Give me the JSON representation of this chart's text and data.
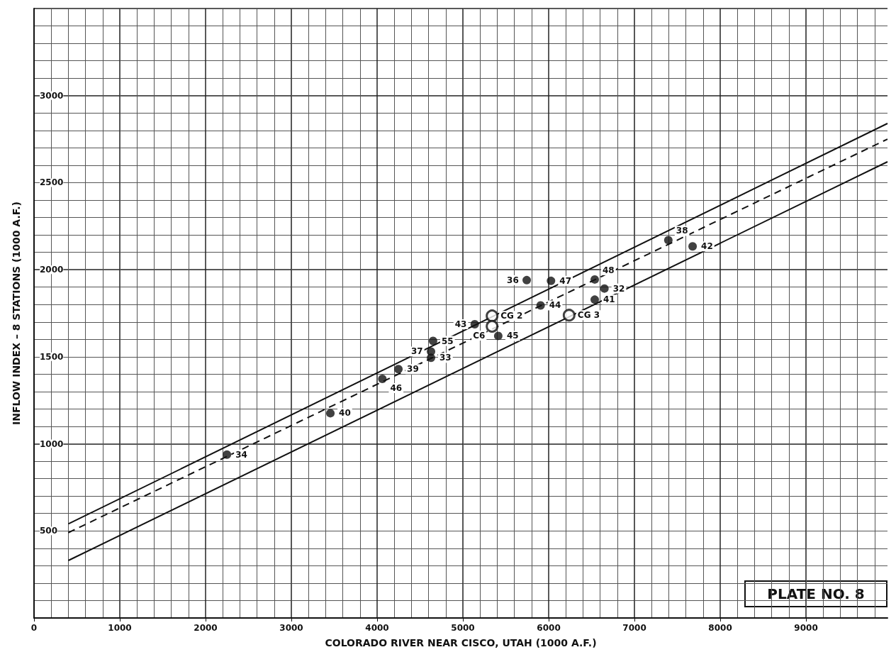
{
  "chart_data": {
    "type": "scatter",
    "xlabel": "COLORADO RIVER NEAR CISCO, UTAH (1000 A.F.)",
    "ylabel": "INFLOW INDEX – 8 STATIONS (1000 A.F.)",
    "xlim": [
      0,
      9950
    ],
    "ylim": [
      0,
      3500
    ],
    "xticks": [
      0,
      1000,
      2000,
      3000,
      4000,
      5000,
      6000,
      7000,
      8000,
      9000
    ],
    "yticks": [
      500,
      1000,
      1500,
      2000,
      2500,
      3000
    ],
    "grid": true,
    "annotations": [
      "PLATE NO. 8",
      {
        "text": "34",
        "x": 2249,
        "y": 938
      },
      {
        "text": "40",
        "x": 3455,
        "y": 1176
      },
      {
        "text": "46",
        "x": 4061,
        "y": 1373
      },
      {
        "text": "39",
        "x": 4248,
        "y": 1429
      },
      {
        "text": "33",
        "x": 4628,
        "y": 1494
      },
      {
        "text": "37",
        "x": 4628,
        "y": 1530
      },
      {
        "text": "55",
        "x": 4652,
        "y": 1591
      },
      {
        "text": "43",
        "x": 5138,
        "y": 1687
      },
      {
        "text": "45",
        "x": 5412,
        "y": 1620
      },
      {
        "text": "36",
        "x": 5744,
        "y": 1940
      },
      {
        "text": "44",
        "x": 5906,
        "y": 1795
      },
      {
        "text": "47",
        "x": 6027,
        "y": 1936
      },
      {
        "text": "48",
        "x": 6537,
        "y": 1944
      },
      {
        "text": "41",
        "x": 6537,
        "y": 1828
      },
      {
        "text": "32",
        "x": 6650,
        "y": 1892
      },
      {
        "text": "38",
        "x": 7395,
        "y": 2170
      },
      {
        "text": "42",
        "x": 7678,
        "y": 2134
      },
      {
        "text": "CG 2",
        "x": 5340,
        "y": 1735
      },
      {
        "text": "C6",
        "x": 5340,
        "y": 1675
      },
      {
        "text": "CG 3",
        "x": 6238,
        "y": 1739
      }
    ],
    "series": [
      {
        "color": "#111111",
        "marker": "circle",
        "x": [
          2249,
          3455,
          4061,
          4248,
          4628,
          4628,
          4652,
          5138,
          5412,
          5744,
          5906,
          6027,
          6537,
          6537,
          6650,
          7395,
          7678
        ],
        "values": [
          938,
          1176,
          1373,
          1429,
          1494,
          1530,
          1591,
          1687,
          1620,
          1940,
          1795,
          1936,
          1944,
          1828,
          1892,
          2170,
          2134
        ]
      },
      {
        "color": "#111111",
        "marker": "circle",
        "x": [
          5340,
          5340,
          6238
        ],
        "values": [
          1735,
          1675,
          1739
        ]
      },
      {
        "type": "line",
        "color": "#111111",
        "marker": "none",
        "line_style": "solid",
        "x": [
          400,
          9950
        ],
        "values": [
          540,
          2840
        ]
      },
      {
        "type": "line",
        "color": "#111111",
        "marker": "none",
        "line_style": "dashed",
        "x": [
          400,
          9950
        ],
        "values": [
          490,
          2750
        ]
      },
      {
        "type": "line",
        "color": "#111111",
        "marker": "none",
        "line_style": "solid",
        "x": [
          400,
          9950
        ],
        "values": [
          330,
          2620
        ]
      }
    ]
  }
}
